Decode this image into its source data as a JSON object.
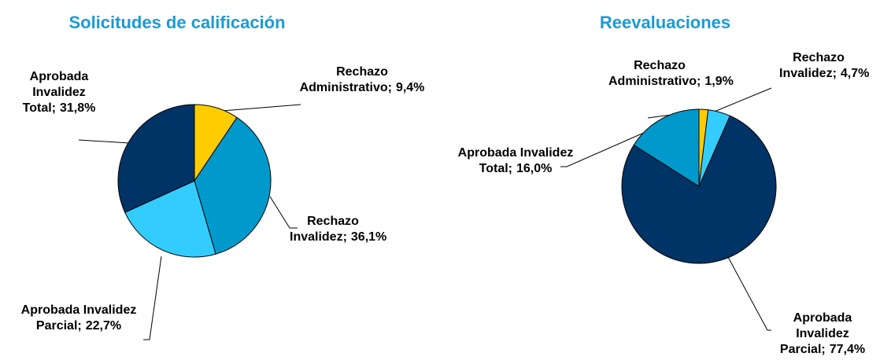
{
  "chart_data": [
    {
      "type": "pie",
      "title": "Solicitudes de calificación",
      "categories": [
        "Rechazo Administrativo;",
        "Rechazo Invalidez;",
        "Aprobada Invalidez Parcial;",
        "Aprobada Invalidez Total;"
      ],
      "values": [
        9.4,
        36.1,
        22.7,
        31.8
      ],
      "value_labels": [
        "9,4%",
        "36,1%",
        "22,7%",
        "31,8%"
      ],
      "colors": [
        "#ffcc00",
        "#0099cc",
        "#33ccff",
        "#003366"
      ]
    },
    {
      "type": "pie",
      "title": "Reevaluaciones",
      "categories": [
        "Rechazo Administrativo;",
        "Rechazo Invalidez;",
        "Aprobada Invalidez Parcial;",
        "Aprobada Invalidez Total;"
      ],
      "values": [
        1.9,
        4.7,
        77.4,
        16.0
      ],
      "value_labels": [
        "1,9%",
        "4,7%",
        "77,4%",
        "16,0%"
      ],
      "colors": [
        "#ffcc00",
        "#33ccff",
        "#003366",
        "#0099cc"
      ]
    }
  ]
}
